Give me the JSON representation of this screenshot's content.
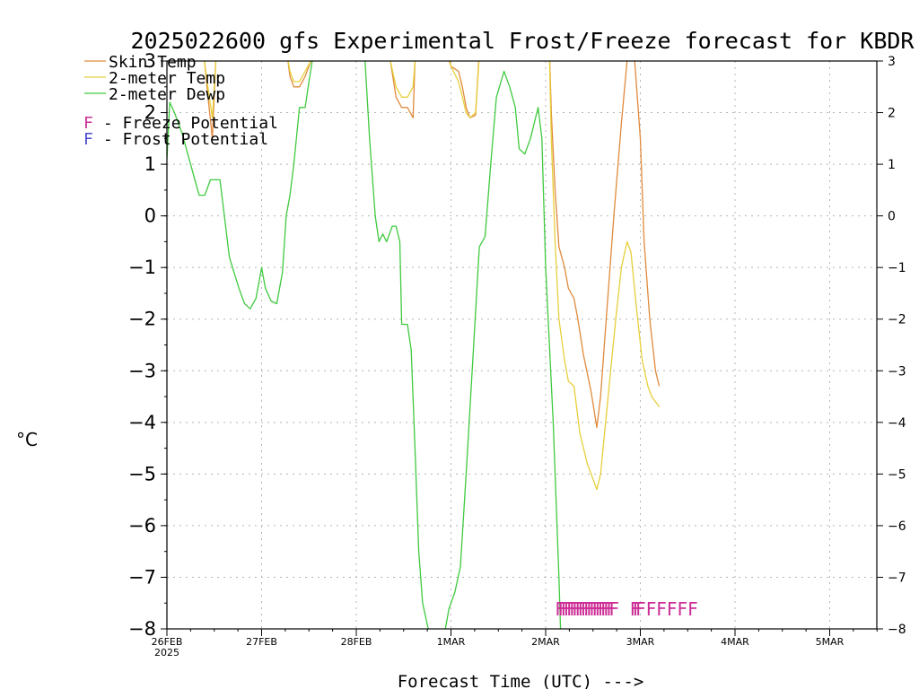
{
  "chart_data": {
    "type": "line",
    "title": "2025022600 gfs Experimental Frost/Freeze forecast for KBDR",
    "xlabel": "Forecast Time (UTC) --->",
    "ylabel": "°C",
    "ylim": [
      -8,
      3
    ],
    "yticks": [
      -8,
      -7,
      -6,
      -5,
      -4,
      -3,
      -2,
      -1,
      0,
      1,
      2,
      3
    ],
    "xlim": [
      0,
      7.5
    ],
    "x_units": "days since 26FEB 2025 00Z",
    "xticks": [
      {
        "x": 0,
        "label": "26FEB",
        "sublabel": "2025"
      },
      {
        "x": 1,
        "label": "27FEB"
      },
      {
        "x": 2,
        "label": "28FEB"
      },
      {
        "x": 3,
        "label": "1MAR"
      },
      {
        "x": 4,
        "label": "2MAR"
      },
      {
        "x": 5,
        "label": "3MAR"
      },
      {
        "x": 6,
        "label": "4MAR"
      },
      {
        "x": 7,
        "label": "5MAR"
      }
    ],
    "grid": true,
    "legend_position": "top-left",
    "series": [
      {
        "name": "Skin Temp",
        "color": "#e08a3c",
        "points": [
          [
            0.0,
            3.0
          ],
          [
            0.1,
            3.2
          ],
          [
            0.22,
            3.5
          ],
          [
            0.3,
            3.4
          ],
          [
            0.38,
            3.3
          ],
          [
            0.44,
            2.2
          ],
          [
            0.48,
            1.5
          ],
          [
            0.52,
            3.2
          ],
          [
            1.25,
            3.4
          ],
          [
            1.3,
            2.7
          ],
          [
            1.34,
            2.5
          ],
          [
            1.4,
            2.5
          ],
          [
            1.46,
            2.7
          ],
          [
            1.52,
            3.0
          ],
          [
            1.58,
            3.4
          ],
          [
            2.3,
            3.3
          ],
          [
            2.36,
            3.0
          ],
          [
            2.42,
            2.3
          ],
          [
            2.48,
            2.1
          ],
          [
            2.54,
            2.1
          ],
          [
            2.6,
            1.9
          ],
          [
            2.62,
            3.0
          ],
          [
            2.66,
            3.4
          ],
          [
            2.96,
            3.2
          ],
          [
            3.0,
            2.9
          ],
          [
            3.08,
            2.8
          ],
          [
            3.12,
            2.5
          ],
          [
            3.16,
            2.1
          ],
          [
            3.2,
            1.9
          ],
          [
            3.26,
            1.95
          ],
          [
            3.3,
            3.2
          ],
          [
            4.04,
            3.2
          ],
          [
            4.06,
            2.0
          ],
          [
            4.1,
            0.5
          ],
          [
            4.14,
            -0.6
          ],
          [
            4.2,
            -1.0
          ],
          [
            4.24,
            -1.4
          ],
          [
            4.3,
            -1.6
          ],
          [
            4.34,
            -2.0
          ],
          [
            4.4,
            -2.7
          ],
          [
            4.48,
            -3.4
          ],
          [
            4.54,
            -4.1
          ],
          [
            4.58,
            -3.5
          ],
          [
            4.64,
            -2.0
          ],
          [
            4.72,
            0.0
          ],
          [
            4.8,
            1.8
          ],
          [
            4.86,
            3.0
          ],
          [
            4.9,
            3.2
          ],
          [
            4.94,
            3.0
          ],
          [
            5.0,
            1.5
          ],
          [
            5.04,
            -0.5
          ],
          [
            5.1,
            -2.0
          ],
          [
            5.16,
            -3.0
          ],
          [
            5.2,
            -3.3
          ]
        ]
      },
      {
        "name": "2-meter Temp",
        "color": "#e6cf3a",
        "points": [
          [
            0.0,
            3.0
          ],
          [
            0.1,
            3.2
          ],
          [
            0.22,
            3.4
          ],
          [
            0.3,
            3.3
          ],
          [
            0.38,
            3.2
          ],
          [
            0.44,
            2.4
          ],
          [
            0.48,
            1.9
          ],
          [
            0.52,
            3.1
          ],
          [
            1.25,
            3.3
          ],
          [
            1.3,
            2.8
          ],
          [
            1.34,
            2.6
          ],
          [
            1.4,
            2.6
          ],
          [
            1.46,
            2.8
          ],
          [
            1.52,
            3.0
          ],
          [
            1.58,
            3.3
          ],
          [
            2.3,
            3.2
          ],
          [
            2.36,
            3.0
          ],
          [
            2.42,
            2.5
          ],
          [
            2.48,
            2.3
          ],
          [
            2.54,
            2.3
          ],
          [
            2.6,
            2.5
          ],
          [
            2.62,
            3.0
          ],
          [
            2.66,
            3.3
          ],
          [
            2.96,
            3.1
          ],
          [
            3.0,
            2.9
          ],
          [
            3.08,
            2.6
          ],
          [
            3.12,
            2.3
          ],
          [
            3.16,
            2.0
          ],
          [
            3.2,
            1.9
          ],
          [
            3.26,
            2.0
          ],
          [
            3.3,
            3.1
          ],
          [
            4.04,
            3.1
          ],
          [
            4.06,
            1.5
          ],
          [
            4.1,
            -0.5
          ],
          [
            4.14,
            -2.0
          ],
          [
            4.2,
            -2.8
          ],
          [
            4.24,
            -3.2
          ],
          [
            4.3,
            -3.3
          ],
          [
            4.36,
            -4.2
          ],
          [
            4.44,
            -4.8
          ],
          [
            4.5,
            -5.1
          ],
          [
            4.54,
            -5.3
          ],
          [
            4.58,
            -5.0
          ],
          [
            4.66,
            -3.5
          ],
          [
            4.74,
            -2.0
          ],
          [
            4.8,
            -1.0
          ],
          [
            4.86,
            -0.5
          ],
          [
            4.9,
            -0.7
          ],
          [
            4.96,
            -1.8
          ],
          [
            5.02,
            -2.8
          ],
          [
            5.08,
            -3.3
          ],
          [
            5.12,
            -3.5
          ],
          [
            5.2,
            -3.7
          ]
        ]
      },
      {
        "name": "2-meter Dewp",
        "color": "#3fca3f",
        "points": [
          [
            0.0,
            1.1
          ],
          [
            0.03,
            2.2
          ],
          [
            0.08,
            2.0
          ],
          [
            0.16,
            1.6
          ],
          [
            0.22,
            1.2
          ],
          [
            0.28,
            0.8
          ],
          [
            0.34,
            0.4
          ],
          [
            0.4,
            0.4
          ],
          [
            0.46,
            0.7
          ],
          [
            0.56,
            0.7
          ],
          [
            0.66,
            -0.8
          ],
          [
            0.76,
            -1.4
          ],
          [
            0.82,
            -1.7
          ],
          [
            0.88,
            -1.8
          ],
          [
            0.94,
            -1.6
          ],
          [
            1.0,
            -1.0
          ],
          [
            1.04,
            -1.4
          ],
          [
            1.1,
            -1.65
          ],
          [
            1.16,
            -1.7
          ],
          [
            1.22,
            -1.1
          ],
          [
            1.26,
            0.0
          ],
          [
            1.3,
            0.4
          ],
          [
            1.34,
            1.0
          ],
          [
            1.4,
            2.1
          ],
          [
            1.46,
            2.1
          ],
          [
            1.5,
            2.6
          ],
          [
            1.56,
            3.3
          ],
          [
            2.08,
            3.4
          ],
          [
            2.14,
            1.5
          ],
          [
            2.2,
            0.0
          ],
          [
            2.24,
            -0.5
          ],
          [
            2.28,
            -0.35
          ],
          [
            2.32,
            -0.5
          ],
          [
            2.38,
            -0.2
          ],
          [
            2.42,
            -0.2
          ],
          [
            2.46,
            -0.5
          ],
          [
            2.48,
            -2.1
          ],
          [
            2.54,
            -2.1
          ],
          [
            2.58,
            -2.6
          ],
          [
            2.62,
            -4.5
          ],
          [
            2.66,
            -6.5
          ],
          [
            2.7,
            -7.5
          ],
          [
            2.76,
            -8.0
          ],
          [
            2.8,
            -8.2
          ],
          [
            2.92,
            -8.2
          ],
          [
            2.98,
            -7.6
          ],
          [
            3.04,
            -7.3
          ],
          [
            3.1,
            -6.8
          ],
          [
            3.16,
            -5.0
          ],
          [
            3.24,
            -2.5
          ],
          [
            3.3,
            -0.6
          ],
          [
            3.36,
            -0.4
          ],
          [
            3.42,
            1.0
          ],
          [
            3.48,
            2.3
          ],
          [
            3.56,
            2.8
          ],
          [
            3.62,
            2.5
          ],
          [
            3.68,
            2.1
          ],
          [
            3.72,
            1.3
          ],
          [
            3.78,
            1.2
          ],
          [
            3.84,
            1.5
          ],
          [
            3.92,
            2.1
          ],
          [
            3.96,
            1.5
          ],
          [
            4.0,
            -1.0
          ],
          [
            4.08,
            -4.0
          ],
          [
            4.14,
            -7.0
          ],
          [
            4.16,
            -8.2
          ]
        ]
      }
    ],
    "potential_markers": [
      {
        "name": "Freeze",
        "label": "F",
        "color": "#cc2c95"
      },
      {
        "name": "Frost",
        "label": "F",
        "color": "#4a4ad0"
      }
    ],
    "freeze_markers_x": [
      4.1,
      4.13,
      4.16,
      4.19,
      4.22,
      4.25,
      4.28,
      4.31,
      4.34,
      4.37,
      4.4,
      4.43,
      4.46,
      4.49,
      4.52,
      4.55,
      4.58,
      4.61,
      4.64,
      4.67,
      4.89,
      4.92,
      4.95,
      5.06,
      5.17,
      5.28,
      5.39,
      5.5
    ],
    "freeze_marker_y": -7.55
  },
  "legend": {
    "skin_temp": "Skin Temp",
    "two_m_temp": "2-meter Temp",
    "two_m_dewp": "2-meter Dewp",
    "freeze_f": "F",
    "freeze_text": " - Freeze Potential",
    "frost_f": "F",
    "frost_text": " - Frost Potential"
  }
}
